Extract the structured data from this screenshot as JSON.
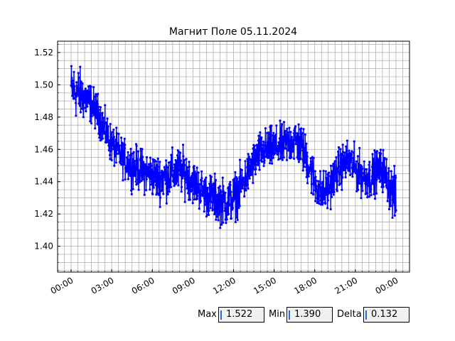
{
  "chart_data": {
    "type": "line",
    "title": "Магнит Поле 05.11.2024",
    "xlabel": "",
    "ylabel": "",
    "x_tick_labels": [
      "00:00",
      "03:00",
      "06:00",
      "09:00",
      "12:00",
      "15:00",
      "18:00",
      "21:00",
      "00:00"
    ],
    "x_ticks_hours": [
      0,
      3,
      6,
      9,
      12,
      15,
      18,
      21,
      24
    ],
    "y_tick_labels": [
      "1.40",
      "1.42",
      "1.44",
      "1.46",
      "1.48",
      "1.50",
      "1.52"
    ],
    "y_ticks": [
      1.4,
      1.42,
      1.44,
      1.46,
      1.48,
      1.5,
      1.52
    ],
    "xlim_hours": [
      -1.0,
      25.0
    ],
    "ylim": [
      1.384,
      1.527
    ],
    "grid": true,
    "series": [
      {
        "color": "#0000ff",
        "marker": "circle",
        "x_hours": [
          0.0,
          0.5,
          1.0,
          1.5,
          2.0,
          2.5,
          3.0,
          3.5,
          4.0,
          4.5,
          5.0,
          5.5,
          6.0,
          6.5,
          7.0,
          7.5,
          8.0,
          8.5,
          9.0,
          9.5,
          10.0,
          10.5,
          11.0,
          11.5,
          12.0,
          12.5,
          13.0,
          13.5,
          14.0,
          14.5,
          15.0,
          15.5,
          16.0,
          16.5,
          17.0,
          17.5,
          18.0,
          18.5,
          19.0,
          19.5,
          20.0,
          20.5,
          21.0,
          21.5,
          22.0,
          22.5,
          23.0,
          23.5,
          24.0
        ],
        "y": [
          1.498,
          1.495,
          1.492,
          1.488,
          1.482,
          1.472,
          1.463,
          1.458,
          1.453,
          1.45,
          1.448,
          1.446,
          1.444,
          1.442,
          1.443,
          1.445,
          1.447,
          1.445,
          1.44,
          1.436,
          1.432,
          1.43,
          1.428,
          1.427,
          1.43,
          1.436,
          1.444,
          1.452,
          1.458,
          1.46,
          1.461,
          1.462,
          1.464,
          1.466,
          1.462,
          1.452,
          1.44,
          1.432,
          1.436,
          1.444,
          1.45,
          1.453,
          1.448,
          1.444,
          1.442,
          1.446,
          1.448,
          1.438,
          1.428
        ],
        "spread": [
          0.014,
          0.014,
          0.012,
          0.01,
          0.01,
          0.01,
          0.01,
          0.01,
          0.01,
          0.011,
          0.011,
          0.011,
          0.011,
          0.012,
          0.012,
          0.012,
          0.012,
          0.012,
          0.011,
          0.011,
          0.011,
          0.012,
          0.012,
          0.012,
          0.012,
          0.012,
          0.011,
          0.011,
          0.011,
          0.011,
          0.011,
          0.011,
          0.011,
          0.012,
          0.012,
          0.012,
          0.012,
          0.011,
          0.011,
          0.011,
          0.011,
          0.011,
          0.011,
          0.011,
          0.011,
          0.011,
          0.011,
          0.012,
          0.014
        ]
      }
    ]
  },
  "stats": {
    "max_label": "Max",
    "max_value": "1.522",
    "min_label": "Min",
    "min_value": "1.390",
    "delta_label": "Delta",
    "delta_value": "0.132"
  }
}
